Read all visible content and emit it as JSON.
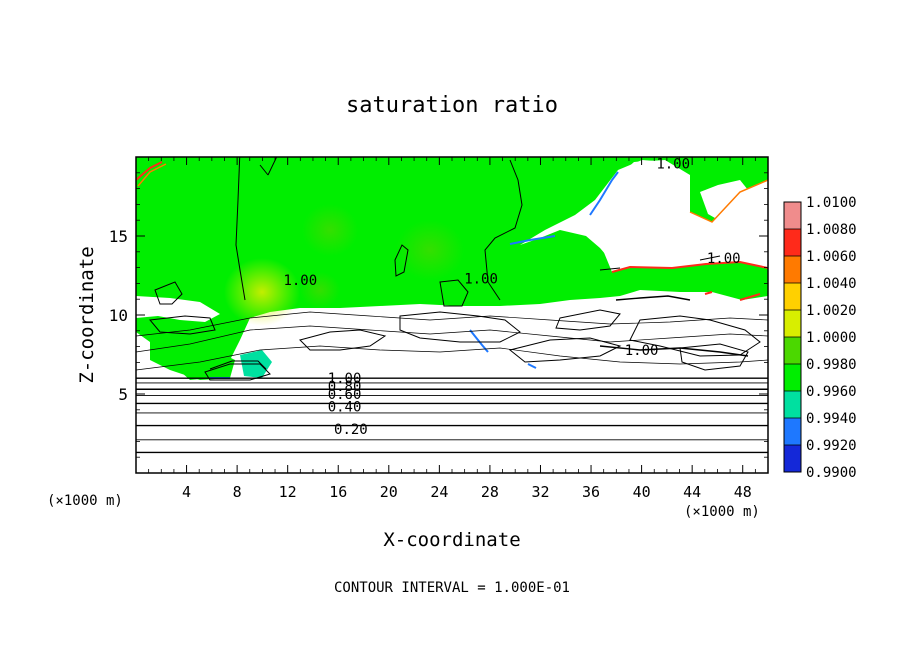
{
  "chart_data": {
    "type": "heatmap",
    "title": "saturation ratio",
    "xlabel": "X-coordinate",
    "ylabel": "Z-coordinate",
    "x_unit_left": "(×1000 m)",
    "x_unit_right": "(×1000 m)",
    "footer": "CONTOUR INTERVAL = 1.000E-01",
    "xlim": [
      0,
      50
    ],
    "ylim": [
      0,
      20
    ],
    "x_ticks": [
      4,
      8,
      12,
      16,
      20,
      24,
      28,
      32,
      36,
      40,
      44,
      48
    ],
    "y_ticks": [
      5,
      10,
      15
    ],
    "colorbar": {
      "levels": [
        "1.0100",
        "1.0080",
        "1.0060",
        "1.0040",
        "1.0020",
        "1.0000",
        "0.9980",
        "0.9960",
        "0.9940",
        "0.9920",
        "0.9900"
      ],
      "colors": [
        "#f08c8c",
        "#ff2a1a",
        "#ff7a00",
        "#ffd000",
        "#d8ee00",
        "#4bd800",
        "#00ee00",
        "#00e0a0",
        "#1e78ff",
        "#1428d8",
        "#5a0aa0"
      ]
    },
    "contour_labels": [
      {
        "text": "1.00",
        "x": 42.5,
        "z": 19.6
      },
      {
        "text": "1.00",
        "x": 13.0,
        "z": 12.2
      },
      {
        "text": "1.00",
        "x": 27.3,
        "z": 12.3
      },
      {
        "text": "1.00",
        "x": 46.5,
        "z": 13.6
      },
      {
        "text": "1.00",
        "x": 40.0,
        "z": 7.8
      },
      {
        "text": "1.00",
        "x": 16.5,
        "z": 6.0
      },
      {
        "text": "0.80",
        "x": 16.5,
        "z": 5.5
      },
      {
        "text": "0.60",
        "x": 16.5,
        "z": 5.0
      },
      {
        "text": "0.40",
        "x": 16.5,
        "z": 4.2
      },
      {
        "text": "0.20",
        "x": 17.0,
        "z": 2.8
      }
    ],
    "horizontal_contours_z": [
      1.3,
      2.1,
      3.0,
      3.8,
      4.4,
      4.9,
      5.3,
      5.7,
      6.0
    ]
  },
  "colors": {
    "supersaturated_green": "#00ee00",
    "subsaturated_white": "#ffffff",
    "contour_line": "#000000"
  }
}
